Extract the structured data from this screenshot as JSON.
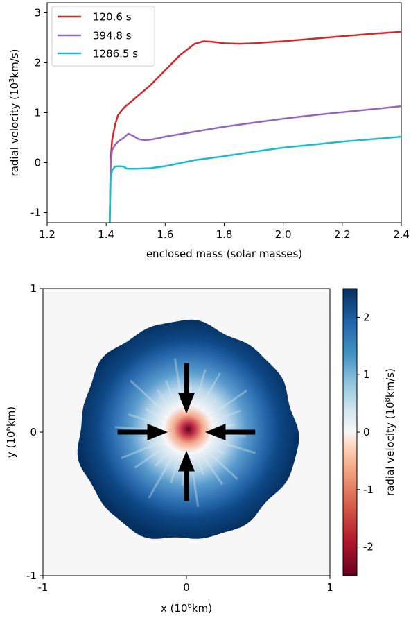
{
  "chart_data": [
    {
      "type": "line",
      "xlabel": "enclosed mass (solar masses)",
      "ylabel_main": "radial velocity (10",
      "ylabel_sup": "3",
      "ylabel_tail": "km/s)",
      "xlim": [
        1.2,
        2.4
      ],
      "ylim": [
        -1.2,
        3.2
      ],
      "xticks": [
        1.2,
        1.4,
        1.6,
        1.8,
        2.0,
        2.2,
        2.4
      ],
      "xtick_labels": [
        "1.2",
        "1.4",
        "1.6",
        "1.8",
        "2.0",
        "2.2",
        "2.4"
      ],
      "yticks": [
        -1,
        0,
        1,
        2,
        3
      ],
      "ytick_labels": [
        "-1",
        "0",
        "1",
        "2",
        "3"
      ],
      "grid": false,
      "legend_position": "top-left",
      "series": [
        {
          "name": "120.6 s",
          "color": "#d62728",
          "x": [
            1.412,
            1.415,
            1.42,
            1.43,
            1.44,
            1.46,
            1.5,
            1.55,
            1.6,
            1.65,
            1.7,
            1.73,
            1.76,
            1.8,
            1.85,
            1.9,
            1.95,
            2.0,
            2.1,
            2.2,
            2.3,
            2.4
          ],
          "y": [
            -1.2,
            0.05,
            0.45,
            0.75,
            0.95,
            1.1,
            1.3,
            1.55,
            1.85,
            2.15,
            2.38,
            2.43,
            2.42,
            2.39,
            2.38,
            2.39,
            2.41,
            2.43,
            2.48,
            2.53,
            2.58,
            2.62
          ]
        },
        {
          "name": "394.8 s",
          "color": "#9467bd",
          "x": [
            1.412,
            1.415,
            1.42,
            1.43,
            1.44,
            1.46,
            1.475,
            1.49,
            1.51,
            1.53,
            1.56,
            1.6,
            1.7,
            1.8,
            1.9,
            2.0,
            2.1,
            2.2,
            2.3,
            2.4
          ],
          "y": [
            -1.2,
            -0.05,
            0.25,
            0.35,
            0.42,
            0.5,
            0.58,
            0.54,
            0.47,
            0.45,
            0.47,
            0.52,
            0.62,
            0.72,
            0.8,
            0.88,
            0.95,
            1.01,
            1.07,
            1.13
          ]
        },
        {
          "name": "1286.5 s",
          "color": "#17becf",
          "x": [
            1.412,
            1.415,
            1.42,
            1.43,
            1.44,
            1.46,
            1.47,
            1.5,
            1.55,
            1.6,
            1.7,
            1.8,
            1.9,
            2.0,
            2.1,
            2.2,
            2.3,
            2.4
          ],
          "y": [
            -1.2,
            -0.35,
            -0.15,
            -0.08,
            -0.07,
            -0.08,
            -0.12,
            -0.12,
            -0.11,
            -0.07,
            0.05,
            0.13,
            0.22,
            0.3,
            0.36,
            0.42,
            0.47,
            0.52
          ]
        }
      ]
    },
    {
      "type": "heatmap",
      "xlabel_main": "x (10",
      "xlabel_sup": "6",
      "xlabel_tail": "km)",
      "ylabel_main": "y (10",
      "ylabel_sup": "6",
      "ylabel_tail": "km)",
      "xlim": [
        -1,
        1
      ],
      "ylim": [
        -1,
        1
      ],
      "xticks": [
        -1,
        0,
        1
      ],
      "xtick_labels": [
        "-1",
        "0",
        "1"
      ],
      "yticks": [
        -1,
        0,
        1
      ],
      "ytick_labels": [
        "-1",
        "0",
        "1"
      ],
      "background_color": "#f7f7f7",
      "blob_radius": 0.76,
      "colorbar": {
        "label_main": "radial velocity (10",
        "label_sup": "8",
        "label_tail": "km/s)",
        "range": [
          -2.5,
          2.5
        ],
        "ticks": [
          -2,
          -1,
          0,
          1,
          2
        ],
        "tick_labels": [
          "-2",
          "-1",
          "0",
          "1",
          "2"
        ],
        "colormap": "RdBu",
        "color_low": "#67001f",
        "color_mid": "#f7f7f7",
        "color_high": "#053061"
      },
      "arrows_direction": "inward",
      "arrow_color": "#000000"
    }
  ]
}
